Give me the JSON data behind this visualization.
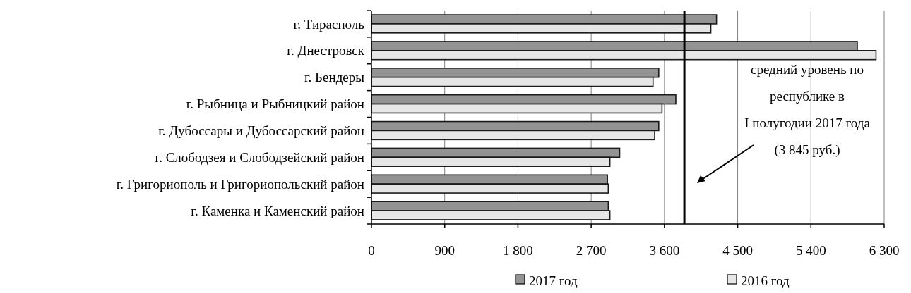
{
  "chart_data": {
    "type": "bar",
    "orientation": "horizontal",
    "categories": [
      "г. Тирасполь",
      "г. Днестровск",
      "г. Бендеры",
      "г. Рыбница и Рыбницкий район",
      "г. Дубоссары и Дубоссарский район",
      "г. Слободзея и Слободзейский район",
      "г. Григориополь и Григориопольский район",
      "г. Каменка и Каменский район"
    ],
    "series": [
      {
        "name": "2017 год",
        "color": "#939393",
        "values": [
          4240,
          5970,
          3530,
          3740,
          3530,
          3050,
          2900,
          2910
        ]
      },
      {
        "name": "2016 год",
        "color": "#e6e6e6",
        "values": [
          4170,
          6200,
          3460,
          3570,
          3480,
          2930,
          2910,
          2930
        ]
      }
    ],
    "xlim": [
      0,
      6300
    ],
    "xticks": [
      0,
      900,
      {
        "value": 1800,
        "label": "1 800"
      },
      {
        "value": 2700,
        "label": "2 700"
      },
      {
        "value": 3600,
        "label": "3 600"
      },
      {
        "value": 4500,
        "label": "4 500"
      },
      {
        "value": 5400,
        "label": "5 400"
      },
      {
        "value": 6300,
        "label": "6 300"
      }
    ],
    "grid": "x",
    "legend": "bottom",
    "ref_lines": [
      {
        "axis": "x",
        "value": 3845,
        "color": "#000000"
      }
    ],
    "annotations": [
      "средний уровень по\nреспублике в\nI полугодии 2017 года\n(3 845 руб.)"
    ]
  }
}
